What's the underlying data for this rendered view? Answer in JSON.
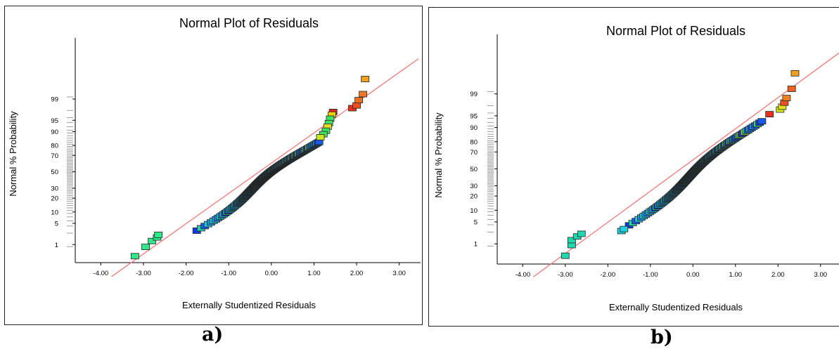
{
  "chart_data": [
    {
      "type": "scatter",
      "panel_label": "a)",
      "title": "Normal Plot of Residuals",
      "xlabel": "Externally Studentized Residuals",
      "ylabel": "Normal % Probability",
      "xlim": [
        -4.6,
        3.5
      ],
      "x_ticks": [
        "-4.00",
        "-3.00",
        "-2.00",
        "-1.00",
        "0.00",
        "1.00",
        "2.00",
        "3.00"
      ],
      "y_ticks": [
        "1",
        "5",
        "10",
        "20",
        "30",
        "50",
        "70",
        "80",
        "90",
        "95",
        "99"
      ],
      "grid": false,
      "reference_line_color": "#f08080",
      "reference_line": {
        "x": [
          -3.75,
          3.45
        ],
        "p": [
          0.04,
          99.985
        ]
      },
      "points": [
        {
          "x": -3.2,
          "p": 0.35,
          "color": "#2ee88a"
        },
        {
          "x": -2.95,
          "p": 0.82,
          "color": "#2ee88a"
        },
        {
          "x": -2.8,
          "p": 1.35,
          "color": "#2ee88a"
        },
        {
          "x": -2.68,
          "p": 1.8,
          "color": "#2ee88a"
        },
        {
          "x": -2.65,
          "p": 2.2,
          "color": "#2ee88a"
        },
        {
          "x": 1.9,
          "p": 97.9,
          "color": "#e8301c"
        },
        {
          "x": 2.0,
          "p": 98.3,
          "color": "#f05020"
        },
        {
          "x": 2.05,
          "p": 98.9,
          "color": "#f07020"
        },
        {
          "x": 2.15,
          "p": 99.35,
          "color": "#f07828"
        },
        {
          "x": 2.2,
          "p": 99.85,
          "color": "#f0a020"
        }
      ],
      "body": {
        "x": [
          -1.75,
          1.05
        ],
        "p": [
          3.0,
          83.0
        ]
      },
      "cluster": [
        {
          "x": 1.45,
          "p": 97.2,
          "color": "#e82020"
        },
        {
          "x": 1.42,
          "p": 96.6,
          "color": "#f0d000"
        },
        {
          "x": 1.38,
          "p": 95.5,
          "color": "#40e060"
        },
        {
          "x": 1.35,
          "p": 94.0,
          "color": "#40e060"
        },
        {
          "x": 1.32,
          "p": 92.5,
          "color": "#e0e020"
        },
        {
          "x": 1.28,
          "p": 90.5,
          "color": "#40e060"
        },
        {
          "x": 1.22,
          "p": 88.5,
          "color": "#40e060"
        },
        {
          "x": 1.15,
          "p": 86.5,
          "color": "#c8e820"
        }
      ]
    },
    {
      "type": "scatter",
      "panel_label": "b)",
      "title": "Normal Plot of Residuals",
      "xlabel": "Externally Studentized Residuals",
      "ylabel": "Normal % Probability",
      "xlim": [
        -4.6,
        3.45
      ],
      "x_ticks": [
        "-4.00",
        "-3.00",
        "-2.00",
        "-1.00",
        "0.00",
        "1.00",
        "2.00",
        "3.00"
      ],
      "y_ticks": [
        "1",
        "5",
        "10",
        "20",
        "30",
        "50",
        "70",
        "80",
        "90",
        "95",
        "99"
      ],
      "grid": false,
      "reference_line_color": "#f08080",
      "reference_line": {
        "x": [
          -3.75,
          3.45
        ],
        "p": [
          0.04,
          99.985
        ]
      },
      "points": [
        {
          "x": -3.0,
          "p": 0.35,
          "color": "#20d8b0"
        },
        {
          "x": -2.85,
          "p": 0.9,
          "color": "#20d8b0"
        },
        {
          "x": -2.85,
          "p": 1.35,
          "color": "#20d8b0"
        },
        {
          "x": -2.72,
          "p": 1.8,
          "color": "#20d8b0"
        },
        {
          "x": -2.62,
          "p": 2.2,
          "color": "#20d8b0"
        },
        {
          "x": -1.68,
          "p": 2.7,
          "color": "#20d0e0"
        },
        {
          "x": -1.62,
          "p": 3.1,
          "color": "#20d0e0"
        },
        {
          "x": 1.8,
          "p": 95.5,
          "color": "#e83020"
        },
        {
          "x": 2.05,
          "p": 96.7,
          "color": "#d8e820"
        },
        {
          "x": 2.1,
          "p": 97.3,
          "color": "#e0e020"
        },
        {
          "x": 2.15,
          "p": 98.0,
          "color": "#f05020"
        },
        {
          "x": 2.2,
          "p": 98.6,
          "color": "#f08020"
        },
        {
          "x": 2.32,
          "p": 99.35,
          "color": "#f06020"
        },
        {
          "x": 2.4,
          "p": 99.85,
          "color": "#f0a020"
        }
      ],
      "body": {
        "x": [
          -1.5,
          1.55
        ],
        "p": [
          4.0,
          93.0
        ]
      },
      "cluster": []
    }
  ]
}
